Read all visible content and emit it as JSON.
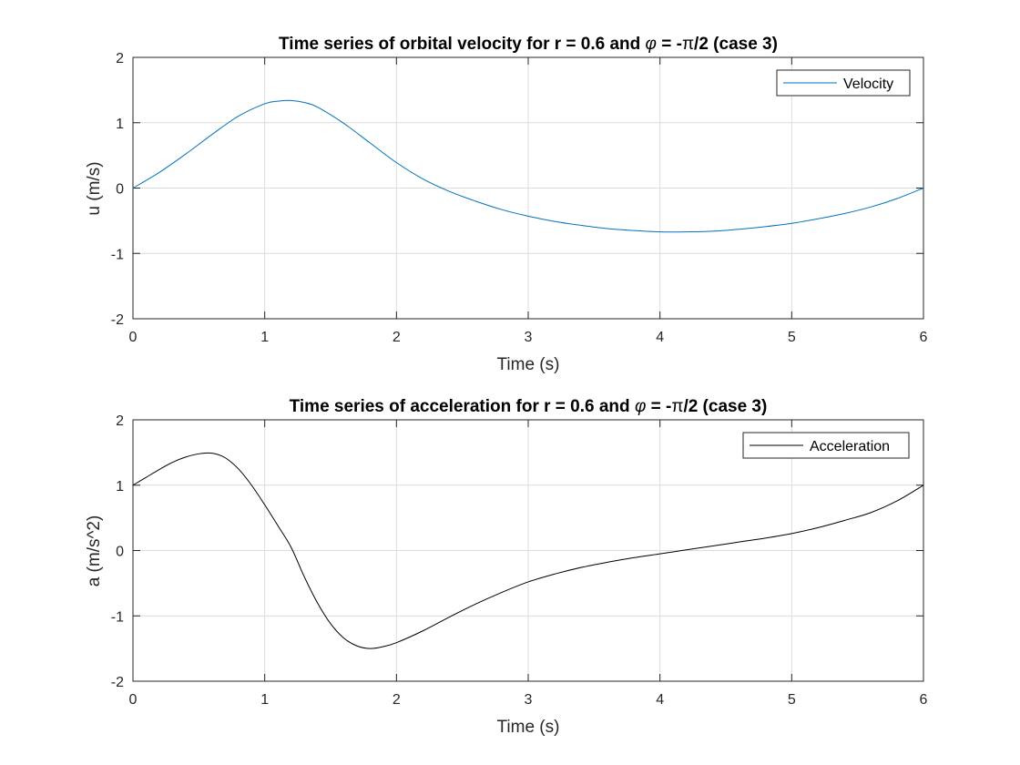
{
  "chart_data": [
    {
      "type": "line",
      "title_main": "Time series of orbital velocity for r = 0.6 and ",
      "title_phi": "φ",
      "title_mid": " = -",
      "title_pi": "π",
      "title_end": "/2 (case 3)",
      "xlabel": "Time (s)",
      "ylabel": "u (m/s)",
      "xlim": [
        0,
        6
      ],
      "ylim": [
        -2,
        2
      ],
      "xticks": [
        "0",
        "1",
        "2",
        "3",
        "4",
        "5",
        "6"
      ],
      "yticks": [
        "-2",
        "-1",
        "0",
        "1",
        "2"
      ],
      "grid": true,
      "legend_position": "top-right",
      "series": [
        {
          "name": "Velocity",
          "color": "#0072BD",
          "x": [
            0,
            0.2,
            0.4,
            0.6,
            0.8,
            1.0,
            1.1,
            1.2,
            1.3,
            1.4,
            1.6,
            1.8,
            2.0,
            2.2,
            2.4,
            2.6,
            2.8,
            3.0,
            3.2,
            3.4,
            3.6,
            3.8,
            4.0,
            4.2,
            4.4,
            4.6,
            4.8,
            5.0,
            5.2,
            5.4,
            5.6,
            5.8,
            6.0
          ],
          "y": [
            0,
            0.24,
            0.52,
            0.82,
            1.1,
            1.29,
            1.33,
            1.34,
            1.31,
            1.24,
            0.99,
            0.69,
            0.39,
            0.14,
            -0.05,
            -0.2,
            -0.33,
            -0.43,
            -0.51,
            -0.57,
            -0.62,
            -0.65,
            -0.67,
            -0.67,
            -0.66,
            -0.63,
            -0.59,
            -0.54,
            -0.47,
            -0.39,
            -0.29,
            -0.16,
            0
          ]
        }
      ]
    },
    {
      "type": "line",
      "title_main": "Time series of acceleration for r = 0.6 and ",
      "title_phi": "φ",
      "title_mid": " = -",
      "title_pi": "π",
      "title_end": "/2 (case 3)",
      "xlabel": "Time (s)",
      "ylabel": "a (m/s^2)",
      "xlim": [
        0,
        6
      ],
      "ylim": [
        -2,
        2
      ],
      "xticks": [
        "0",
        "1",
        "2",
        "3",
        "4",
        "5",
        "6"
      ],
      "yticks": [
        "-2",
        "-1",
        "0",
        "1",
        "2"
      ],
      "grid": true,
      "legend_position": "top-right",
      "series": [
        {
          "name": "Acceleration",
          "color": "#000000",
          "x": [
            0,
            0.1,
            0.2,
            0.3,
            0.4,
            0.5,
            0.6,
            0.7,
            0.8,
            0.9,
            1.0,
            1.1,
            1.2,
            1.3,
            1.4,
            1.5,
            1.6,
            1.7,
            1.8,
            1.9,
            2.0,
            2.2,
            2.4,
            2.6,
            2.8,
            3.0,
            3.2,
            3.4,
            3.6,
            3.8,
            4.0,
            4.2,
            4.4,
            4.6,
            4.8,
            5.0,
            5.2,
            5.4,
            5.6,
            5.8,
            6.0
          ],
          "y": [
            1.0,
            1.12,
            1.24,
            1.35,
            1.43,
            1.48,
            1.49,
            1.42,
            1.25,
            1.0,
            0.7,
            0.38,
            0.05,
            -0.4,
            -0.8,
            -1.12,
            -1.34,
            -1.46,
            -1.5,
            -1.47,
            -1.41,
            -1.23,
            -1.02,
            -0.82,
            -0.64,
            -0.48,
            -0.36,
            -0.26,
            -0.18,
            -0.11,
            -0.05,
            0.01,
            0.07,
            0.13,
            0.19,
            0.26,
            0.35,
            0.46,
            0.58,
            0.76,
            1.0
          ]
        }
      ]
    }
  ]
}
